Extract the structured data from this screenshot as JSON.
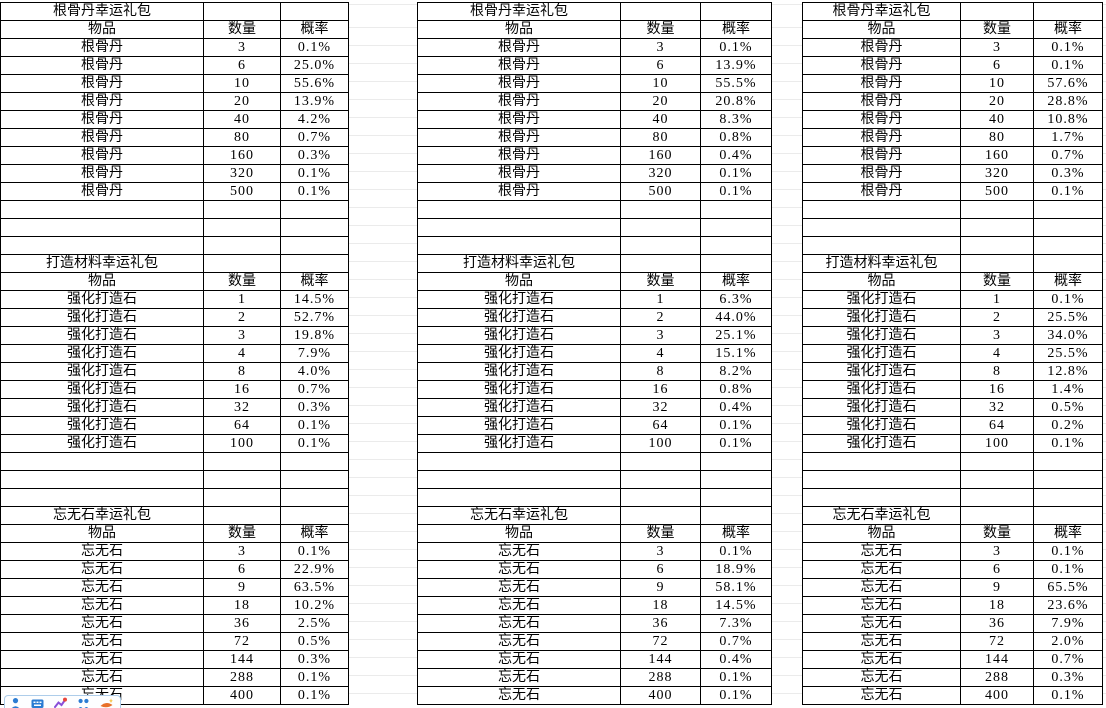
{
  "sheet": {
    "grid_color": "#ebebeb",
    "border_color": "#000000"
  },
  "groups": [
    {
      "name": "group-1",
      "sections": [
        {
          "title": "根骨丹幸运礼包",
          "headers": [
            "物品",
            "数量",
            "概率"
          ],
          "rows": [
            [
              "根骨丹",
              "3",
              "0.1%"
            ],
            [
              "根骨丹",
              "6",
              "25.0%"
            ],
            [
              "根骨丹",
              "10",
              "55.6%"
            ],
            [
              "根骨丹",
              "20",
              "13.9%"
            ],
            [
              "根骨丹",
              "40",
              "4.2%"
            ],
            [
              "根骨丹",
              "80",
              "0.7%"
            ],
            [
              "根骨丹",
              "160",
              "0.3%"
            ],
            [
              "根骨丹",
              "320",
              "0.1%"
            ],
            [
              "根骨丹",
              "500",
              "0.1%"
            ]
          ]
        },
        {
          "title": "打造材料幸运礼包",
          "headers": [
            "物品",
            "数量",
            "概率"
          ],
          "rows": [
            [
              "强化打造石",
              "1",
              "14.5%"
            ],
            [
              "强化打造石",
              "2",
              "52.7%"
            ],
            [
              "强化打造石",
              "3",
              "19.8%"
            ],
            [
              "强化打造石",
              "4",
              "7.9%"
            ],
            [
              "强化打造石",
              "8",
              "4.0%"
            ],
            [
              "强化打造石",
              "16",
              "0.7%"
            ],
            [
              "强化打造石",
              "32",
              "0.3%"
            ],
            [
              "强化打造石",
              "64",
              "0.1%"
            ],
            [
              "强化打造石",
              "100",
              "0.1%"
            ]
          ]
        },
        {
          "title": "忘无石幸运礼包",
          "headers": [
            "物品",
            "数量",
            "概率"
          ],
          "rows": [
            [
              "忘无石",
              "3",
              "0.1%"
            ],
            [
              "忘无石",
              "6",
              "22.9%"
            ],
            [
              "忘无石",
              "9",
              "63.5%"
            ],
            [
              "忘无石",
              "18",
              "10.2%"
            ],
            [
              "忘无石",
              "36",
              "2.5%"
            ],
            [
              "忘无石",
              "72",
              "0.5%"
            ],
            [
              "忘无石",
              "144",
              "0.3%"
            ],
            [
              "忘无石",
              "288",
              "0.1%"
            ],
            [
              "忘无石",
              "400",
              "0.1%"
            ]
          ]
        }
      ]
    },
    {
      "name": "group-2",
      "sections": [
        {
          "title": "根骨丹幸运礼包",
          "headers": [
            "物品",
            "数量",
            "概率"
          ],
          "rows": [
            [
              "根骨丹",
              "3",
              "0.1%"
            ],
            [
              "根骨丹",
              "6",
              "13.9%"
            ],
            [
              "根骨丹",
              "10",
              "55.5%"
            ],
            [
              "根骨丹",
              "20",
              "20.8%"
            ],
            [
              "根骨丹",
              "40",
              "8.3%"
            ],
            [
              "根骨丹",
              "80",
              "0.8%"
            ],
            [
              "根骨丹",
              "160",
              "0.4%"
            ],
            [
              "根骨丹",
              "320",
              "0.1%"
            ],
            [
              "根骨丹",
              "500",
              "0.1%"
            ]
          ]
        },
        {
          "title": "打造材料幸运礼包",
          "headers": [
            "物品",
            "数量",
            "概率"
          ],
          "rows": [
            [
              "强化打造石",
              "1",
              "6.3%"
            ],
            [
              "强化打造石",
              "2",
              "44.0%"
            ],
            [
              "强化打造石",
              "3",
              "25.1%"
            ],
            [
              "强化打造石",
              "4",
              "15.1%"
            ],
            [
              "强化打造石",
              "8",
              "8.2%"
            ],
            [
              "强化打造石",
              "16",
              "0.8%"
            ],
            [
              "强化打造石",
              "32",
              "0.4%"
            ],
            [
              "强化打造石",
              "64",
              "0.1%"
            ],
            [
              "强化打造石",
              "100",
              "0.1%"
            ]
          ]
        },
        {
          "title": "忘无石幸运礼包",
          "headers": [
            "物品",
            "数量",
            "概率"
          ],
          "rows": [
            [
              "忘无石",
              "3",
              "0.1%"
            ],
            [
              "忘无石",
              "6",
              "18.9%"
            ],
            [
              "忘无石",
              "9",
              "58.1%"
            ],
            [
              "忘无石",
              "18",
              "14.5%"
            ],
            [
              "忘无石",
              "36",
              "7.3%"
            ],
            [
              "忘无石",
              "72",
              "0.7%"
            ],
            [
              "忘无石",
              "144",
              "0.4%"
            ],
            [
              "忘无石",
              "288",
              "0.1%"
            ],
            [
              "忘无石",
              "400",
              "0.1%"
            ]
          ]
        }
      ]
    },
    {
      "name": "group-3",
      "sections": [
        {
          "title": "根骨丹幸运礼包",
          "headers": [
            "物品",
            "数量",
            "概率"
          ],
          "rows": [
            [
              "根骨丹",
              "3",
              "0.1%"
            ],
            [
              "根骨丹",
              "6",
              "0.1%"
            ],
            [
              "根骨丹",
              "10",
              "57.6%"
            ],
            [
              "根骨丹",
              "20",
              "28.8%"
            ],
            [
              "根骨丹",
              "40",
              "10.8%"
            ],
            [
              "根骨丹",
              "80",
              "1.7%"
            ],
            [
              "根骨丹",
              "160",
              "0.7%"
            ],
            [
              "根骨丹",
              "320",
              "0.3%"
            ],
            [
              "根骨丹",
              "500",
              "0.1%"
            ]
          ]
        },
        {
          "title": "打造材料幸运礼包",
          "headers": [
            "物品",
            "数量",
            "概率"
          ],
          "rows": [
            [
              "强化打造石",
              "1",
              "0.1%"
            ],
            [
              "强化打造石",
              "2",
              "25.5%"
            ],
            [
              "强化打造石",
              "3",
              "34.0%"
            ],
            [
              "强化打造石",
              "4",
              "25.5%"
            ],
            [
              "强化打造石",
              "8",
              "12.8%"
            ],
            [
              "强化打造石",
              "16",
              "1.4%"
            ],
            [
              "强化打造石",
              "32",
              "0.5%"
            ],
            [
              "强化打造石",
              "64",
              "0.2%"
            ],
            [
              "强化打造石",
              "100",
              "0.1%"
            ]
          ]
        },
        {
          "title": "忘无石幸运礼包",
          "headers": [
            "物品",
            "数量",
            "概率"
          ],
          "rows": [
            [
              "忘无石",
              "3",
              "0.1%"
            ],
            [
              "忘无石",
              "6",
              "0.1%"
            ],
            [
              "忘无石",
              "9",
              "65.5%"
            ],
            [
              "忘无石",
              "18",
              "23.6%"
            ],
            [
              "忘无石",
              "36",
              "7.9%"
            ],
            [
              "忘无石",
              "72",
              "2.0%"
            ],
            [
              "忘无石",
              "144",
              "0.7%"
            ],
            [
              "忘无石",
              "288",
              "0.3%"
            ],
            [
              "忘无石",
              "400",
              "0.1%"
            ]
          ]
        }
      ]
    }
  ],
  "taskbar_popup": {
    "icons": [
      {
        "name": "person-icon",
        "color": "#2b7cd3"
      },
      {
        "name": "keyboard-icon",
        "color": "#2b7cd3"
      },
      {
        "name": "chart-icon",
        "color": "#8a4fd8",
        "accent": "#e8453c"
      },
      {
        "name": "users-icon",
        "color": "#2b7cd3"
      },
      {
        "name": "whale-icon",
        "color": "#e8702a",
        "accent": "#f6c445"
      }
    ]
  }
}
